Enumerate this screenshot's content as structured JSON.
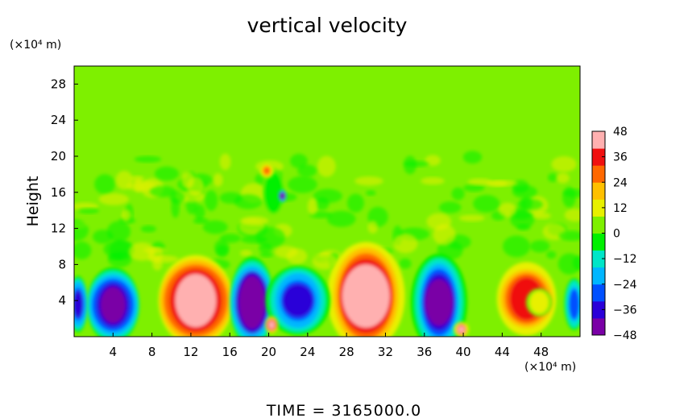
{
  "chart_data": {
    "type": "heatmap",
    "title": "vertical velocity",
    "ylabel": "Height",
    "x_unit_label": "(×10⁴ m)",
    "y_unit_label": "(×10⁴ m)",
    "xlim": [
      0,
      52
    ],
    "ylim": [
      0,
      30
    ],
    "x_ticks": [
      4,
      8,
      12,
      16,
      20,
      24,
      28,
      32,
      36,
      40,
      44,
      48
    ],
    "y_ticks": [
      4,
      8,
      12,
      16,
      20,
      24,
      28
    ],
    "colorbar": {
      "min": -48,
      "max": 48,
      "ticks": [
        48,
        36,
        24,
        12,
        0,
        -12,
        -24,
        -36,
        -48
      ],
      "colors": [
        "#7a00a6",
        "#2a00d8",
        "#0050ff",
        "#00b6ff",
        "#00e6c8",
        "#00f000",
        "#7ef000",
        "#e8f000",
        "#ffc000",
        "#ff6800",
        "#f01010",
        "#ffb0b0"
      ]
    },
    "background_value": 2,
    "features": [
      {
        "x": 12.5,
        "y": 4.0,
        "rx": 3.2,
        "ry": 4.2,
        "value": 50
      },
      {
        "x": 30.0,
        "y": 4.5,
        "rx": 3.3,
        "ry": 5.0,
        "value": 50
      },
      {
        "x": 46.5,
        "y": 4.2,
        "rx": 2.6,
        "ry": 3.4,
        "value": 38
      },
      {
        "x": 47.8,
        "y": 3.8,
        "rx": 1.1,
        "ry": 1.3,
        "value": 14
      },
      {
        "x": 18.3,
        "y": 3.8,
        "rx": 2.0,
        "ry": 4.2,
        "value": -50
      },
      {
        "x": 37.5,
        "y": 3.8,
        "rx": 2.3,
        "ry": 4.5,
        "value": -48
      },
      {
        "x": 4.0,
        "y": 3.5,
        "rx": 2.4,
        "ry": 3.5,
        "value": -42
      },
      {
        "x": 23.0,
        "y": 4.0,
        "rx": 2.6,
        "ry": 3.2,
        "value": -36
      },
      {
        "x": 0.4,
        "y": 3.6,
        "rx": 0.9,
        "ry": 2.6,
        "value": -36
      },
      {
        "x": 51.4,
        "y": 3.6,
        "rx": 0.8,
        "ry": 2.4,
        "value": -30
      },
      {
        "x": 20.3,
        "y": 1.3,
        "rx": 0.6,
        "ry": 0.8,
        "value": 40
      },
      {
        "x": 39.8,
        "y": 0.8,
        "rx": 0.6,
        "ry": 0.7,
        "value": 40
      },
      {
        "x": 20.5,
        "y": 16.0,
        "rx": 1.0,
        "ry": 2.2,
        "value": -8
      },
      {
        "x": 19.8,
        "y": 18.4,
        "rx": 0.6,
        "ry": 0.7,
        "value": 24
      },
      {
        "x": 21.4,
        "y": 15.6,
        "rx": 0.4,
        "ry": 0.6,
        "value": -42
      }
    ],
    "footer_text": "TIME = 3165000.0"
  }
}
